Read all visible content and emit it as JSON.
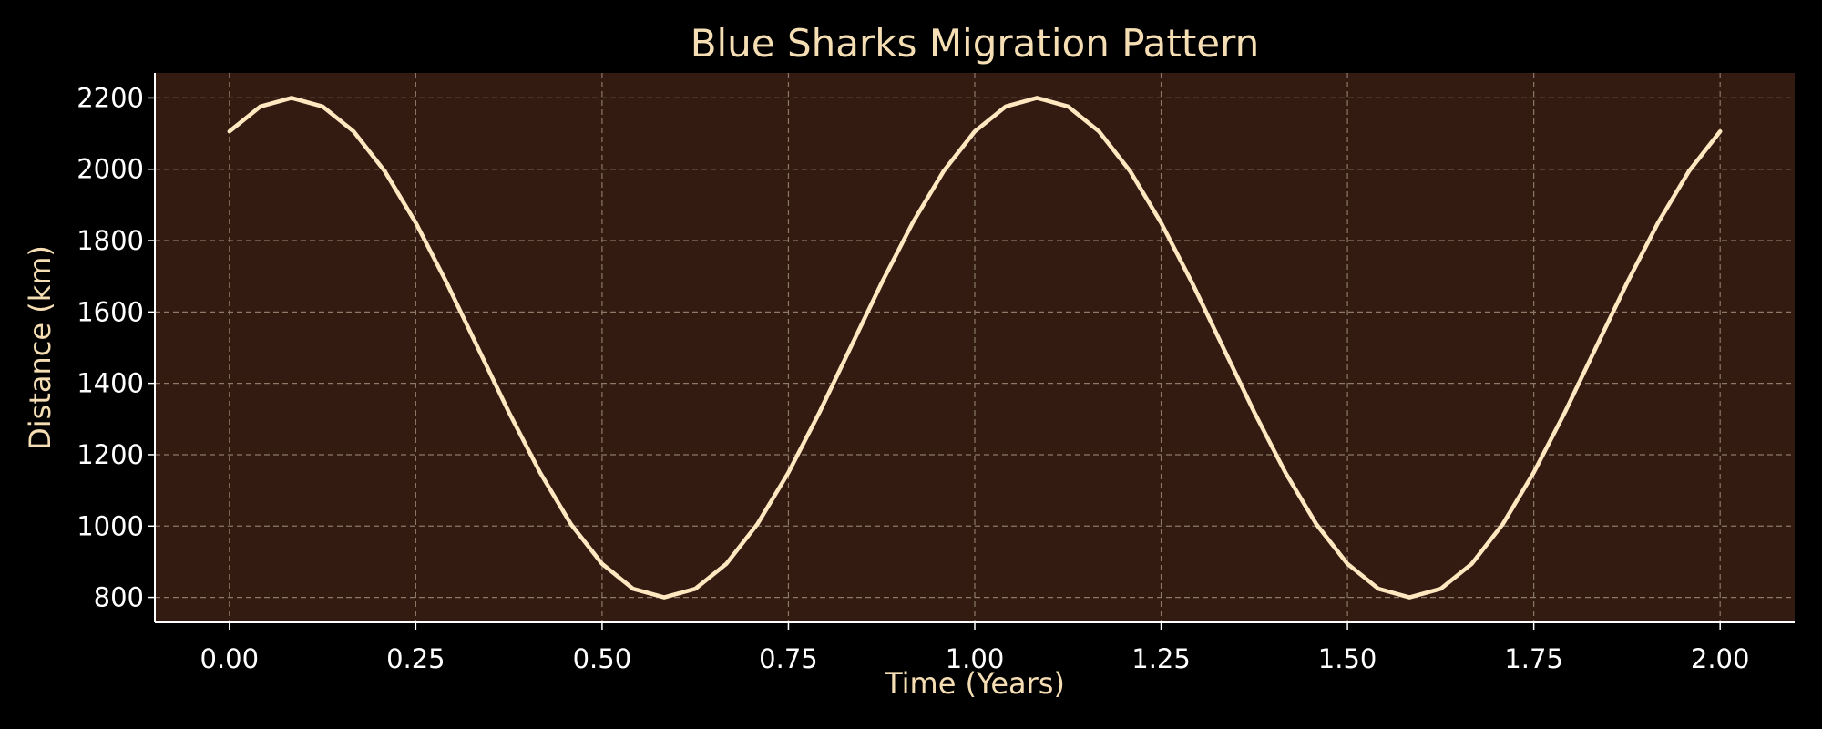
{
  "chart_data": {
    "type": "line",
    "title": "Blue Sharks Migration Pattern",
    "xlabel": "Time (Years)",
    "ylabel": "Distance (km)",
    "xlim": [
      -0.1,
      2.1
    ],
    "ylim": [
      730,
      2270
    ],
    "x_ticks": [
      0.0,
      0.25,
      0.5,
      0.75,
      1.0,
      1.25,
      1.5,
      1.75,
      2.0
    ],
    "x_tick_labels": [
      "0.00",
      "0.25",
      "0.50",
      "0.75",
      "1.00",
      "1.25",
      "1.50",
      "1.75",
      "2.00"
    ],
    "y_ticks": [
      800,
      1000,
      1200,
      1400,
      1600,
      1800,
      2000,
      2200
    ],
    "y_tick_labels": [
      "800",
      "1000",
      "1200",
      "1400",
      "1600",
      "1800",
      "2000",
      "2200"
    ],
    "grid": true,
    "series": [
      {
        "x": [
          0.0,
          0.0417,
          0.0833,
          0.125,
          0.1667,
          0.2083,
          0.25,
          0.2917,
          0.3333,
          0.375,
          0.4167,
          0.4583,
          0.5,
          0.5417,
          0.5833,
          0.625,
          0.6667,
          0.7083,
          0.75,
          0.7917,
          0.8333,
          0.875,
          0.9167,
          0.9583,
          1.0,
          1.0417,
          1.0833,
          1.125,
          1.1667,
          1.2083,
          1.25,
          1.2917,
          1.3333,
          1.375,
          1.4167,
          1.4583,
          1.5,
          1.5417,
          1.5833,
          1.625,
          1.6667,
          1.7083,
          1.75,
          1.7917,
          1.8333,
          1.875,
          1.9167,
          1.9583,
          2.0
        ],
        "y": [
          2106,
          2176,
          2200,
          2176,
          2106,
          1995,
          1850,
          1681,
          1500,
          1319,
          1150,
          1005,
          894,
          824,
          800,
          824,
          894,
          1005,
          1150,
          1319,
          1500,
          1681,
          1850,
          1995,
          2106,
          2176,
          2200,
          2176,
          2106,
          1995,
          1850,
          1681,
          1500,
          1319,
          1150,
          1005,
          894,
          824,
          800,
          824,
          894,
          1005,
          1150,
          1319,
          1500,
          1681,
          1850,
          1995,
          2106
        ]
      }
    ]
  },
  "colors": {
    "figure_background": "#000000",
    "plot_background": "#331b12",
    "line": "#ffe8c0",
    "grid": "#8a7a66",
    "axis_spine": "#ffffff",
    "title_text": "#f5deb3",
    "tick_text": "#ffffff"
  }
}
